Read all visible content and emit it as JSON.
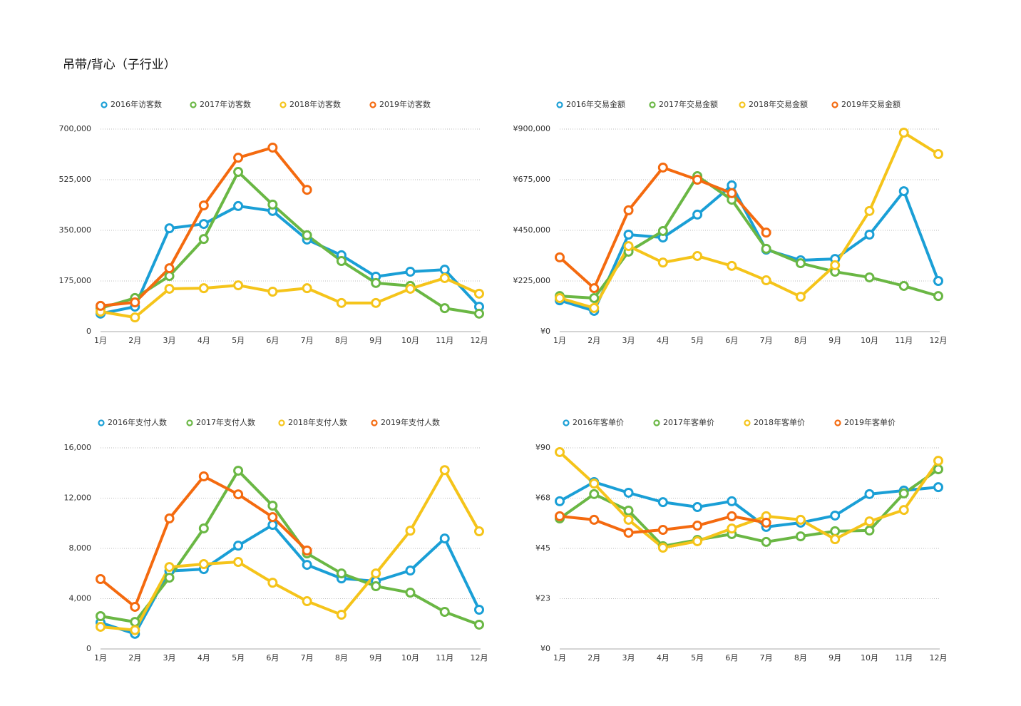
{
  "title": "吊带/背心（子行业）",
  "chart_data": [
    {
      "type": "line",
      "grid": true,
      "legend": "top",
      "categories": [
        "1月",
        "2月",
        "3月",
        "4月",
        "5月",
        "6月",
        "7月",
        "8月",
        "9月",
        "10月",
        "11月",
        "12月"
      ],
      "ylim": [
        0,
        700000
      ],
      "yticks": [
        0,
        {
          "value": 175000,
          "label": "175,000"
        },
        {
          "value": 350000,
          "label": "350,000"
        },
        {
          "value": 525000,
          "label": "525,000"
        },
        {
          "value": 700000,
          "label": "700,000"
        }
      ],
      "series": [
        {
          "name": "2016年访客数",
          "color": "#1a9fd6",
          "values": [
            62000,
            86000,
            357000,
            372000,
            434000,
            417000,
            318000,
            264000,
            190000,
            207000,
            214000,
            86000
          ]
        },
        {
          "name": "2017年访客数",
          "color": "#6ab744",
          "values": [
            81000,
            116000,
            192000,
            320000,
            552000,
            439000,
            333000,
            244000,
            168000,
            158000,
            81000,
            62000
          ]
        },
        {
          "name": "2018年访客数",
          "color": "#f5c41a",
          "values": [
            69000,
            49000,
            148000,
            150000,
            160000,
            138000,
            150000,
            99000,
            99000,
            148000,
            185000,
            131000
          ]
        },
        {
          "name": "2019年访客数",
          "color": "#f46a0f",
          "values": [
            89000,
            101000,
            219000,
            436000,
            601000,
            636000,
            490000,
            null,
            null,
            null,
            null,
            null
          ]
        }
      ]
    },
    {
      "type": "line",
      "grid": true,
      "legend": "top",
      "categories": [
        "1月",
        "2月",
        "3月",
        "4月",
        "5月",
        "6月",
        "7月",
        "8月",
        "9月",
        "10月",
        "11月",
        "12月"
      ],
      "ylim": [
        0,
        900000
      ],
      "yticks": [
        {
          "value": 0,
          "label": "¥0"
        },
        {
          "value": 225000,
          "label": "¥225,000"
        },
        {
          "value": 450000,
          "label": "¥450,000"
        },
        {
          "value": 675000,
          "label": "¥675,000"
        },
        {
          "value": 900000,
          "label": "¥900,000"
        }
      ],
      "series": [
        {
          "name": "2016年交易金额",
          "color": "#1a9fd6",
          "values": [
            139000,
            92000,
            431000,
            418000,
            520000,
            650000,
            364000,
            317000,
            323000,
            431000,
            624000,
            225000
          ]
        },
        {
          "name": "2017年交易金额",
          "color": "#6ab744",
          "values": [
            158000,
            149000,
            355000,
            447000,
            691000,
            586000,
            368000,
            304000,
            266000,
            241000,
            203000,
            158000
          ]
        },
        {
          "name": "2018年交易金额",
          "color": "#f5c41a",
          "values": [
            149000,
            105000,
            380000,
            307000,
            336000,
            292000,
            228000,
            155000,
            295000,
            536000,
            884000,
            789000
          ]
        },
        {
          "name": "2019年交易金额",
          "color": "#f46a0f",
          "values": [
            330000,
            193000,
            539000,
            729000,
            675000,
            615000,
            440000,
            null,
            null,
            null,
            null,
            null
          ]
        }
      ]
    },
    {
      "type": "line",
      "grid": true,
      "legend": "top",
      "categories": [
        "1月",
        "2月",
        "3月",
        "4月",
        "5月",
        "6月",
        "7月",
        "8月",
        "9月",
        "10月",
        "11月",
        "12月"
      ],
      "ylim": [
        0,
        16000
      ],
      "yticks": [
        0,
        {
          "value": 4000,
          "label": "4,000"
        },
        {
          "value": 8000,
          "label": "8,000"
        },
        {
          "value": 12000,
          "label": "12,000"
        },
        {
          "value": 16000,
          "label": "16,000"
        }
      ],
      "series": [
        {
          "name": "2016年支付人数",
          "color": "#1a9fd6",
          "values": [
            2100,
            1200,
            6200,
            6350,
            8220,
            9870,
            6690,
            5610,
            5390,
            6240,
            8790,
            3120
          ]
        },
        {
          "name": "2017年支付人数",
          "color": "#6ab744",
          "values": [
            2610,
            2150,
            5670,
            9590,
            14180,
            11400,
            7600,
            6010,
            4990,
            4480,
            2950,
            1930
          ]
        },
        {
          "name": "2018年支付人数",
          "color": "#f5c41a",
          "values": [
            1760,
            1500,
            6520,
            6750,
            6920,
            5270,
            3800,
            2720,
            6010,
            9410,
            14230,
            9360
          ]
        },
        {
          "name": "2019年支付人数",
          "color": "#f46a0f",
          "values": [
            5560,
            3350,
            10380,
            13730,
            12300,
            10490,
            7830,
            null,
            null,
            null,
            null,
            null
          ]
        }
      ]
    },
    {
      "type": "line",
      "grid": true,
      "legend": "top",
      "categories": [
        "1月",
        "2月",
        "3月",
        "4月",
        "5月",
        "6月",
        "7月",
        "8月",
        "9月",
        "10月",
        "11月",
        "12月"
      ],
      "ylim": [
        0,
        90
      ],
      "yticks": [
        {
          "value": 0,
          "label": "¥0"
        },
        {
          "value": 22.5,
          "label": "¥23"
        },
        {
          "value": 45,
          "label": "¥45"
        },
        {
          "value": 67.5,
          "label": "¥68"
        },
        {
          "value": 90,
          "label": "¥90"
        }
      ],
      "series": [
        {
          "name": "2016年客单价",
          "color": "#1a9fd6",
          "values": [
            66.1,
            74.7,
            69.9,
            65.7,
            63.5,
            66.1,
            54.6,
            56.5,
            59.7,
            69.3,
            70.9,
            72.4
          ]
        },
        {
          "name": "2017年客单价",
          "color": "#6ab744",
          "values": [
            58.4,
            69.3,
            61.9,
            46.0,
            48.8,
            51.4,
            47.9,
            50.4,
            52.7,
            53.0,
            69.6,
            80.4
          ]
        },
        {
          "name": "2018年客单价",
          "color": "#f5c41a",
          "values": [
            88.1,
            74.0,
            57.8,
            45.3,
            48.2,
            53.9,
            59.4,
            57.8,
            49.1,
            57.1,
            62.2,
            84.2
          ]
        },
        {
          "name": "2019年客单价",
          "color": "#f46a0f",
          "values": [
            59.4,
            57.8,
            52.0,
            53.3,
            55.2,
            59.4,
            56.5,
            null,
            null,
            null,
            null,
            null
          ]
        }
      ]
    }
  ]
}
